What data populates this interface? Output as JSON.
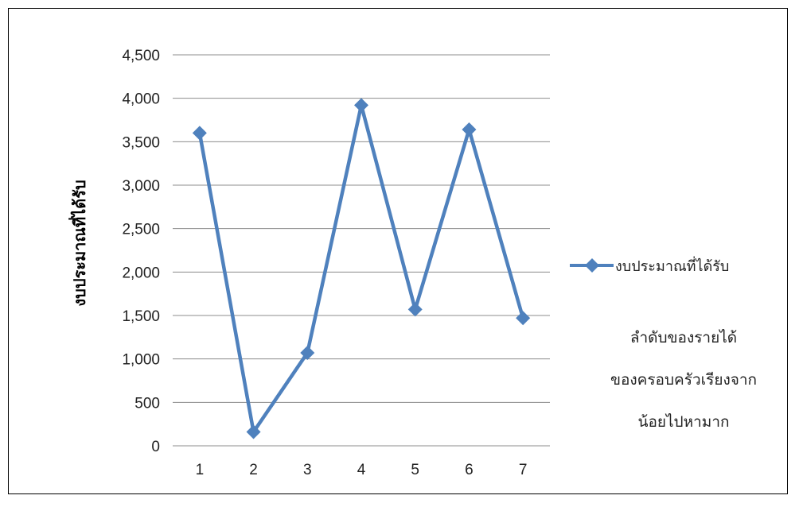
{
  "chart_data": {
    "type": "line",
    "categories": [
      "1",
      "2",
      "3",
      "4",
      "5",
      "6",
      "7"
    ],
    "series": [
      {
        "name": "งบประมาณที่ได้รับ",
        "values": [
          3600,
          160,
          1070,
          3920,
          1570,
          3640,
          1470
        ]
      }
    ],
    "ylabel": "งบประมาณที่ได้รับ",
    "xlabel": "",
    "ylim": [
      0,
      4500
    ],
    "yticks": [
      0,
      500,
      1000,
      1500,
      2000,
      2500,
      3000,
      3500,
      4000,
      4500
    ],
    "ytick_labels": [
      "0",
      "500",
      "1,000",
      "1,500",
      "2,000",
      "2,500",
      "3,000",
      "3,500",
      "4,000",
      "4,500"
    ],
    "grid": true,
    "legend_position": "right",
    "annotation_lines": [
      "ลำดับของรายได้",
      "ของครอบครัวเรียงจาก",
      "น้อยไปหามาก"
    ],
    "series_color": "#4F81BD"
  }
}
